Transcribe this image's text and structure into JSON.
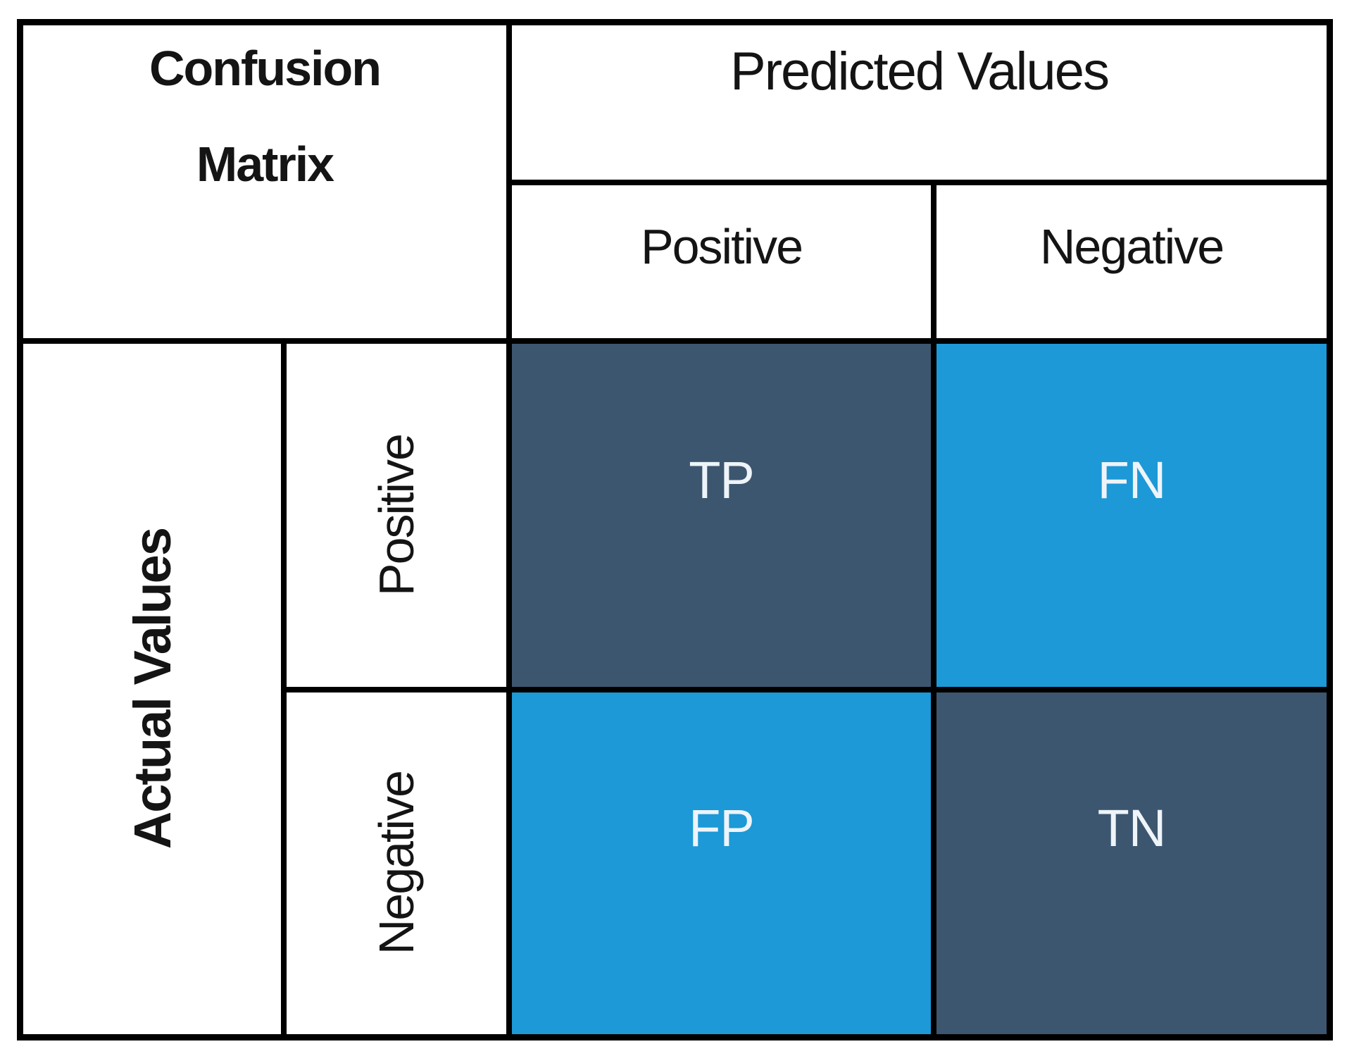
{
  "colors": {
    "border": "#000000",
    "dark_cell": "#3d566f",
    "light_cell": "#1c99d6",
    "header_text": "#141414",
    "cell_text": "#eef4f9",
    "page_bg": "#ffffff"
  },
  "matrix": {
    "corner_title_lines": [
      "Confusion",
      "Matrix"
    ],
    "predicted_axis_label": "Predicted Values",
    "actual_axis_label": "Actual Values",
    "predicted_categories": [
      "Positive",
      "Negative"
    ],
    "actual_categories": [
      "Positive",
      "Negative"
    ],
    "cells": {
      "tp": "TP",
      "fn": "FN",
      "fp": "FP",
      "tn": "TN"
    }
  }
}
